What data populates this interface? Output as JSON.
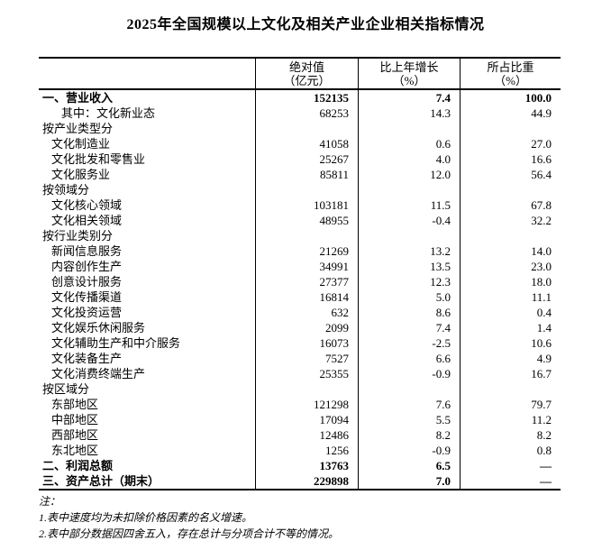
{
  "page": {
    "title": "2025年全国规模以上文化及相关产业企业相关指标情况"
  },
  "colors": {
    "background": "#ffffff",
    "text": "#000000",
    "border": "#000000"
  },
  "table": {
    "columns": [
      {
        "line1": "绝对值",
        "line2": "（亿元）"
      },
      {
        "line1": "比上年增长",
        "line2": "（%）"
      },
      {
        "line1": "所占比重",
        "line2": "（%）"
      }
    ],
    "rows": [
      {
        "label": "一、营业收入",
        "indent": 0,
        "bold": true,
        "absolute": "152135",
        "growth": "7.4",
        "share": "100.0"
      },
      {
        "label": "其中：文化新业态",
        "indent": 2,
        "bold": false,
        "absolute": "68253",
        "growth": "14.3",
        "share": "44.9"
      },
      {
        "label": "按产业类型分",
        "indent": 0,
        "bold": false,
        "absolute": "",
        "growth": "",
        "share": ""
      },
      {
        "label": "文化制造业",
        "indent": 1,
        "bold": false,
        "absolute": "41058",
        "growth": "0.6",
        "share": "27.0"
      },
      {
        "label": "文化批发和零售业",
        "indent": 1,
        "bold": false,
        "absolute": "25267",
        "growth": "4.0",
        "share": "16.6"
      },
      {
        "label": "文化服务业",
        "indent": 1,
        "bold": false,
        "absolute": "85811",
        "growth": "12.0",
        "share": "56.4"
      },
      {
        "label": "按领域分",
        "indent": 0,
        "bold": false,
        "absolute": "",
        "growth": "",
        "share": ""
      },
      {
        "label": "文化核心领域",
        "indent": 1,
        "bold": false,
        "absolute": "103181",
        "growth": "11.5",
        "share": "67.8"
      },
      {
        "label": "文化相关领域",
        "indent": 1,
        "bold": false,
        "absolute": "48955",
        "growth": "-0.4",
        "share": "32.2"
      },
      {
        "label": "按行业类别分",
        "indent": 0,
        "bold": false,
        "absolute": "",
        "growth": "",
        "share": ""
      },
      {
        "label": "新闻信息服务",
        "indent": 1,
        "bold": false,
        "absolute": "21269",
        "growth": "13.2",
        "share": "14.0"
      },
      {
        "label": "内容创作生产",
        "indent": 1,
        "bold": false,
        "absolute": "34991",
        "growth": "13.5",
        "share": "23.0"
      },
      {
        "label": "创意设计服务",
        "indent": 1,
        "bold": false,
        "absolute": "27377",
        "growth": "12.3",
        "share": "18.0"
      },
      {
        "label": "文化传播渠道",
        "indent": 1,
        "bold": false,
        "absolute": "16814",
        "growth": "5.0",
        "share": "11.1"
      },
      {
        "label": "文化投资运营",
        "indent": 1,
        "bold": false,
        "absolute": "632",
        "growth": "8.6",
        "share": "0.4"
      },
      {
        "label": "文化娱乐休闲服务",
        "indent": 1,
        "bold": false,
        "absolute": "2099",
        "growth": "7.4",
        "share": "1.4"
      },
      {
        "label": "文化辅助生产和中介服务",
        "indent": 1,
        "bold": false,
        "absolute": "16073",
        "growth": "-2.5",
        "share": "10.6"
      },
      {
        "label": "文化装备生产",
        "indent": 1,
        "bold": false,
        "absolute": "7527",
        "growth": "6.6",
        "share": "4.9"
      },
      {
        "label": "文化消费终端生产",
        "indent": 1,
        "bold": false,
        "absolute": "25355",
        "growth": "-0.9",
        "share": "16.7"
      },
      {
        "label": "按区域分",
        "indent": 0,
        "bold": false,
        "absolute": "",
        "growth": "",
        "share": ""
      },
      {
        "label": "东部地区",
        "indent": 1,
        "bold": false,
        "absolute": "121298",
        "growth": "7.6",
        "share": "79.7"
      },
      {
        "label": "中部地区",
        "indent": 1,
        "bold": false,
        "absolute": "17094",
        "growth": "5.5",
        "share": "11.2"
      },
      {
        "label": "西部地区",
        "indent": 1,
        "bold": false,
        "absolute": "12486",
        "growth": "8.2",
        "share": "8.2"
      },
      {
        "label": "东北地区",
        "indent": 1,
        "bold": false,
        "absolute": "1256",
        "growth": "-0.9",
        "share": "0.8"
      },
      {
        "label": "二、利润总额",
        "indent": 0,
        "bold": true,
        "absolute": "13763",
        "growth": "6.5",
        "share": "—"
      },
      {
        "label": "三、资产总计（期末）",
        "indent": 0,
        "bold": true,
        "absolute": "229898",
        "growth": "7.0",
        "share": "—"
      }
    ]
  },
  "notes": {
    "heading": "注：",
    "items": [
      "1.表中速度均为未扣除价格因素的名义增速。",
      "2.表中部分数据因四舍五入，存在总计与分项合计不等的情况。"
    ]
  }
}
